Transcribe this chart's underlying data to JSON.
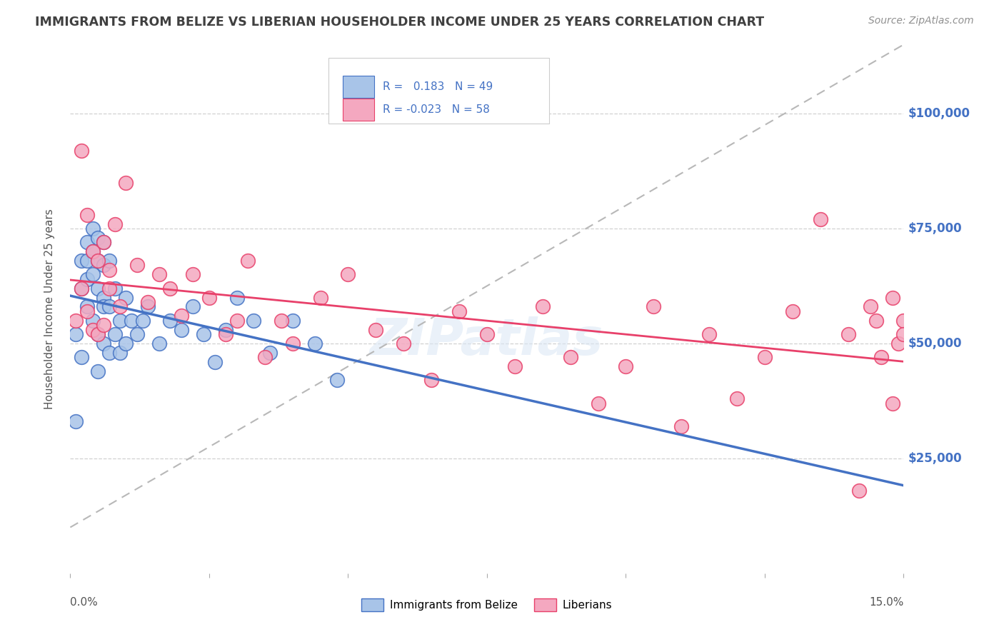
{
  "title": "IMMIGRANTS FROM BELIZE VS LIBERIAN HOUSEHOLDER INCOME UNDER 25 YEARS CORRELATION CHART",
  "source": "Source: ZipAtlas.com",
  "ylabel": "Householder Income Under 25 years",
  "xmin": 0.0,
  "xmax": 0.15,
  "ymin": 0,
  "ymax": 115000,
  "yticks": [
    25000,
    50000,
    75000,
    100000
  ],
  "ytick_labels": [
    "$25,000",
    "$50,000",
    "$75,000",
    "$100,000"
  ],
  "color_belize": "#a8c4e8",
  "color_liberia": "#f4a8c0",
  "trendline_belize_color": "#4472c4",
  "trendline_liberia_color": "#e8406a",
  "trendline_dashed_color": "#b8b8b8",
  "background_color": "#ffffff",
  "grid_color": "#cccccc",
  "title_color": "#404040",
  "axis_label_color": "#4472c4",
  "source_color": "#909090",
  "belize_x": [
    0.001,
    0.001,
    0.002,
    0.002,
    0.002,
    0.003,
    0.003,
    0.003,
    0.003,
    0.004,
    0.004,
    0.004,
    0.004,
    0.005,
    0.005,
    0.005,
    0.005,
    0.005,
    0.006,
    0.006,
    0.006,
    0.006,
    0.006,
    0.007,
    0.007,
    0.007,
    0.008,
    0.008,
    0.009,
    0.009,
    0.01,
    0.01,
    0.011,
    0.012,
    0.013,
    0.014,
    0.016,
    0.018,
    0.02,
    0.022,
    0.024,
    0.026,
    0.028,
    0.03,
    0.033,
    0.036,
    0.04,
    0.044,
    0.048
  ],
  "belize_y": [
    33000,
    52000,
    68000,
    62000,
    47000,
    72000,
    68000,
    64000,
    58000,
    75000,
    70000,
    65000,
    55000,
    73000,
    68000,
    62000,
    52000,
    44000,
    72000,
    67000,
    60000,
    50000,
    58000,
    68000,
    58000,
    48000,
    62000,
    52000,
    55000,
    48000,
    60000,
    50000,
    55000,
    52000,
    55000,
    58000,
    50000,
    55000,
    53000,
    58000,
    52000,
    46000,
    53000,
    60000,
    55000,
    48000,
    55000,
    50000,
    42000
  ],
  "liberia_x": [
    0.001,
    0.002,
    0.002,
    0.003,
    0.003,
    0.004,
    0.004,
    0.005,
    0.005,
    0.006,
    0.006,
    0.007,
    0.007,
    0.008,
    0.009,
    0.01,
    0.012,
    0.014,
    0.016,
    0.018,
    0.02,
    0.022,
    0.025,
    0.028,
    0.03,
    0.032,
    0.035,
    0.038,
    0.04,
    0.045,
    0.05,
    0.055,
    0.06,
    0.065,
    0.07,
    0.075,
    0.08,
    0.085,
    0.09,
    0.095,
    0.1,
    0.105,
    0.11,
    0.115,
    0.12,
    0.125,
    0.13,
    0.135,
    0.14,
    0.145,
    0.148,
    0.149,
    0.15,
    0.15,
    0.148,
    0.146,
    0.144,
    0.142
  ],
  "liberia_y": [
    55000,
    92000,
    62000,
    78000,
    57000,
    70000,
    53000,
    68000,
    52000,
    72000,
    54000,
    66000,
    62000,
    76000,
    58000,
    85000,
    67000,
    59000,
    65000,
    62000,
    56000,
    65000,
    60000,
    52000,
    55000,
    68000,
    47000,
    55000,
    50000,
    60000,
    65000,
    53000,
    50000,
    42000,
    57000,
    52000,
    45000,
    58000,
    47000,
    37000,
    45000,
    58000,
    32000,
    52000,
    38000,
    47000,
    57000,
    77000,
    52000,
    55000,
    37000,
    50000,
    55000,
    52000,
    60000,
    47000,
    58000,
    18000
  ]
}
